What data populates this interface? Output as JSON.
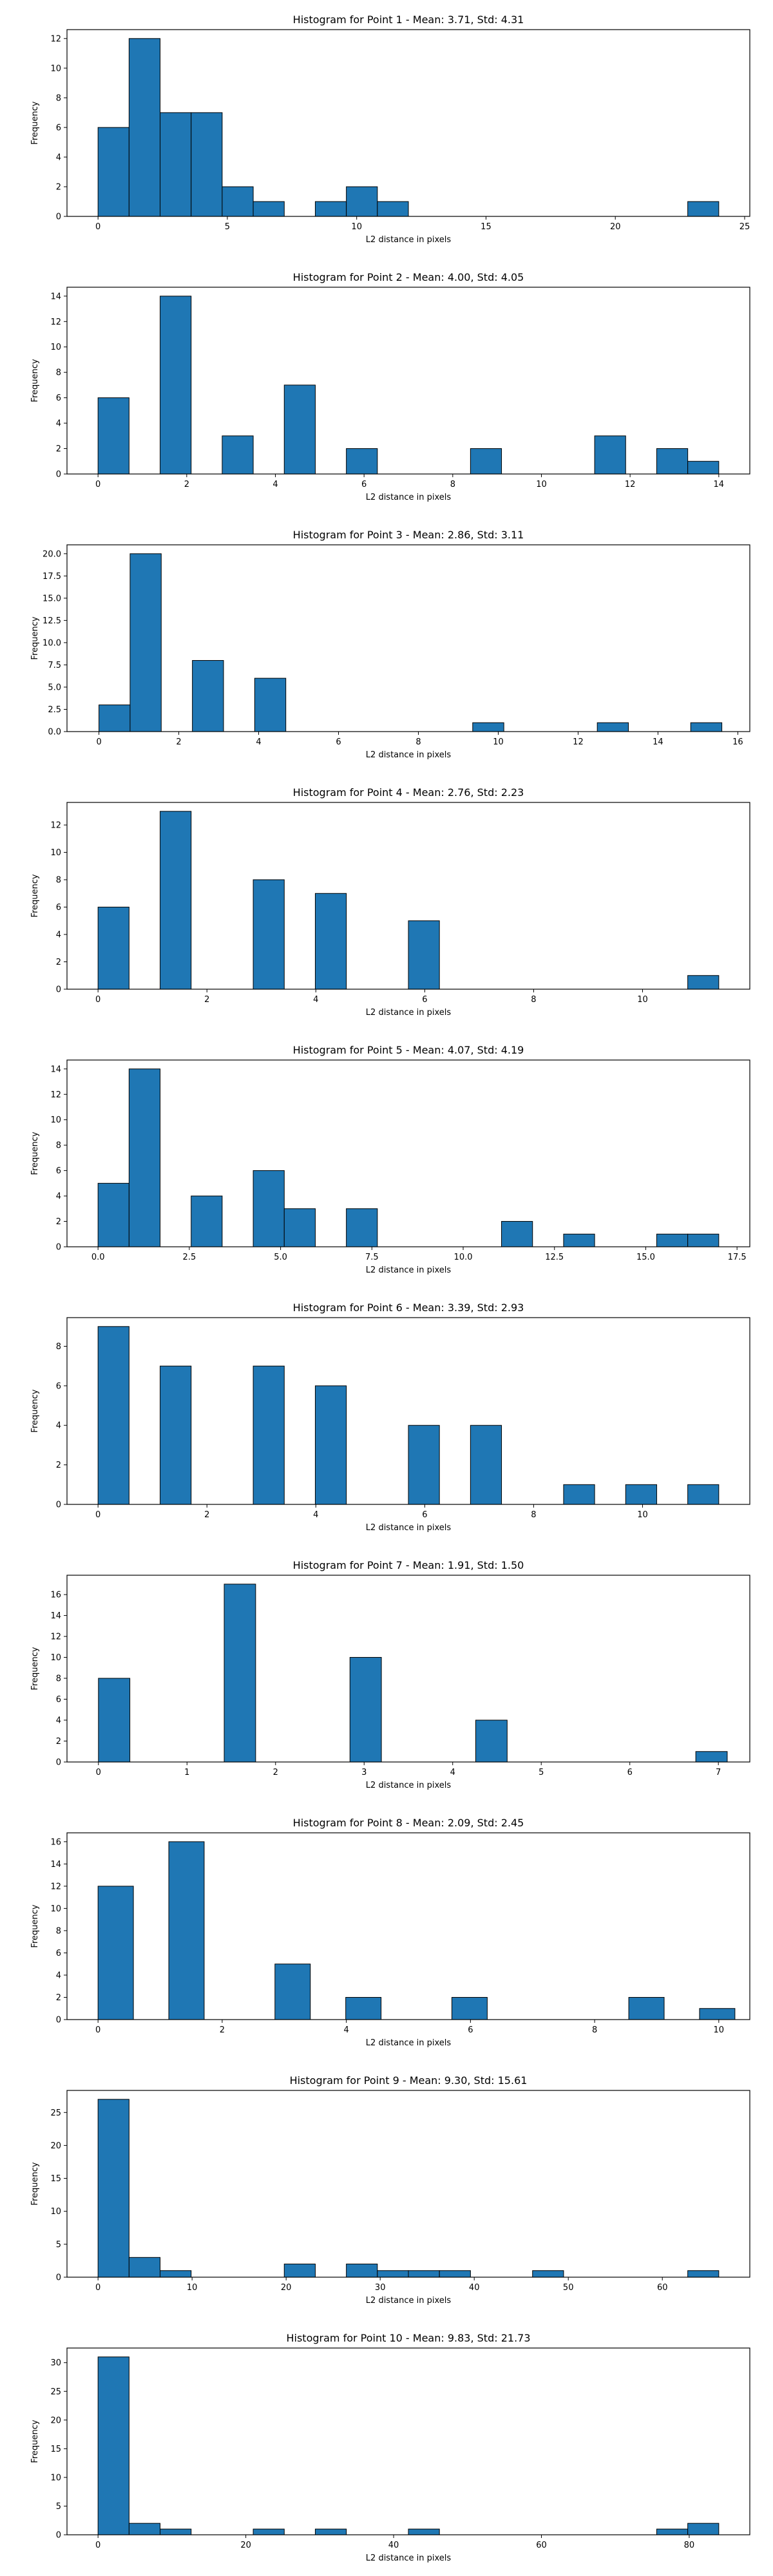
{
  "style": {
    "bar_color": "#1f77b4",
    "edge_color": "#000000"
  },
  "chart_data": [
    {
      "type": "bar",
      "title": "Histogram for Point 1 - Mean: 3.71, Std: 4.31",
      "xlabel": "L2 distance in pixels",
      "ylabel": "Frequency",
      "xlim": [
        -1.2,
        25.2
      ],
      "ylim": [
        0,
        12.6
      ],
      "xticks": [
        0,
        5,
        10,
        15,
        20,
        25
      ],
      "yticks": [
        0,
        2,
        4,
        6,
        8,
        10,
        12
      ],
      "bins": [
        [
          0,
          1.2,
          6
        ],
        [
          1.2,
          2.4,
          12
        ],
        [
          2.4,
          3.6,
          7
        ],
        [
          3.6,
          4.8,
          7
        ],
        [
          4.8,
          6.0,
          2
        ],
        [
          6.0,
          7.2,
          1
        ],
        [
          8.4,
          9.6,
          1
        ],
        [
          9.6,
          10.8,
          2
        ],
        [
          10.8,
          12.0,
          1
        ],
        [
          22.8,
          24.0,
          1
        ]
      ]
    },
    {
      "type": "bar",
      "title": "Histogram for Point 2 - Mean: 4.00, Std: 4.05",
      "xlabel": "L2 distance in pixels",
      "ylabel": "Frequency",
      "xlim": [
        -0.7,
        14.7
      ],
      "ylim": [
        0,
        14.7
      ],
      "xticks": [
        0,
        2,
        4,
        6,
        8,
        10,
        12,
        14
      ],
      "yticks": [
        0,
        2,
        4,
        6,
        8,
        10,
        12,
        14
      ],
      "bins": [
        [
          0,
          0.7,
          6
        ],
        [
          1.4,
          2.1,
          14
        ],
        [
          2.8,
          3.5,
          3
        ],
        [
          4.2,
          4.9,
          7
        ],
        [
          5.6,
          6.3,
          2
        ],
        [
          8.4,
          9.1,
          2
        ],
        [
          11.2,
          11.9,
          3
        ],
        [
          12.6,
          13.3,
          2
        ],
        [
          13.3,
          14.0,
          1
        ]
      ]
    },
    {
      "type": "bar",
      "title": "Histogram for Point 3 - Mean: 2.86, Std: 3.11",
      "xlabel": "L2 distance in pixels",
      "ylabel": "Frequency",
      "xlim": [
        -0.8,
        16.3
      ],
      "ylim": [
        0,
        21
      ],
      "xticks": [
        0,
        2,
        4,
        6,
        8,
        10,
        12,
        14,
        16
      ],
      "yticks": [
        0.0,
        2.5,
        5.0,
        7.5,
        10.0,
        12.5,
        15.0,
        17.5,
        20.0
      ],
      "ytick_labels": [
        "0.0",
        "2.5",
        "5.0",
        "7.5",
        "10.0",
        "12.5",
        "15.0",
        "17.5",
        "20.0"
      ],
      "bins": [
        [
          0,
          0.78,
          3
        ],
        [
          0.78,
          1.56,
          20
        ],
        [
          2.34,
          3.12,
          8
        ],
        [
          3.9,
          4.68,
          6
        ],
        [
          9.36,
          10.14,
          1
        ],
        [
          12.48,
          13.26,
          1
        ],
        [
          14.82,
          15.6,
          1
        ]
      ]
    },
    {
      "type": "bar",
      "title": "Histogram for Point 4 - Mean: 2.76, Std: 2.23",
      "xlabel": "L2 distance in pixels",
      "ylabel": "Frequency",
      "xlim": [
        -0.57,
        11.97
      ],
      "ylim": [
        0,
        13.65
      ],
      "xticks": [
        0,
        2,
        4,
        6,
        8,
        10
      ],
      "yticks": [
        0,
        2,
        4,
        6,
        8,
        10,
        12
      ],
      "bins": [
        [
          0,
          0.57,
          6
        ],
        [
          1.14,
          1.71,
          13
        ],
        [
          2.85,
          3.42,
          8
        ],
        [
          3.99,
          4.56,
          7
        ],
        [
          5.7,
          6.27,
          5
        ],
        [
          10.83,
          11.4,
          1
        ]
      ]
    },
    {
      "type": "bar",
      "title": "Histogram for Point 5 - Mean: 4.07, Std: 4.19",
      "xlabel": "L2 distance in pixels",
      "ylabel": "Frequency",
      "xlim": [
        -0.85,
        17.85
      ],
      "ylim": [
        0,
        14.7
      ],
      "xticks": [
        0.0,
        2.5,
        5.0,
        7.5,
        10.0,
        12.5,
        15.0,
        17.5
      ],
      "xtick_labels": [
        "0.0",
        "2.5",
        "5.0",
        "7.5",
        "10.0",
        "12.5",
        "15.0",
        "17.5"
      ],
      "yticks": [
        0,
        2,
        4,
        6,
        8,
        10,
        12,
        14
      ],
      "bins": [
        [
          0,
          0.85,
          5
        ],
        [
          0.85,
          1.7,
          14
        ],
        [
          2.55,
          3.4,
          4
        ],
        [
          4.25,
          5.1,
          6
        ],
        [
          5.1,
          5.95,
          3
        ],
        [
          6.8,
          7.65,
          3
        ],
        [
          11.05,
          11.9,
          2
        ],
        [
          12.75,
          13.6,
          1
        ],
        [
          15.3,
          16.15,
          1
        ],
        [
          16.15,
          17.0,
          1
        ]
      ]
    },
    {
      "type": "bar",
      "title": "Histogram for Point 6 - Mean: 3.39, Std: 2.93",
      "xlabel": "L2 distance in pixels",
      "ylabel": "Frequency",
      "xlim": [
        -0.57,
        11.97
      ],
      "ylim": [
        0,
        9.45
      ],
      "xticks": [
        0,
        2,
        4,
        6,
        8,
        10
      ],
      "yticks": [
        0,
        2,
        4,
        6,
        8
      ],
      "bins": [
        [
          0,
          0.57,
          9
        ],
        [
          1.14,
          1.71,
          7
        ],
        [
          2.85,
          3.42,
          7
        ],
        [
          3.99,
          4.56,
          6
        ],
        [
          5.7,
          6.27,
          4
        ],
        [
          6.84,
          7.41,
          4
        ],
        [
          8.55,
          9.12,
          1
        ],
        [
          9.69,
          10.26,
          1
        ],
        [
          10.83,
          11.4,
          1
        ]
      ]
    },
    {
      "type": "bar",
      "title": "Histogram for Point 7 - Mean: 1.91, Std: 1.50",
      "xlabel": "L2 distance in pixels",
      "ylabel": "Frequency",
      "xlim": [
        -0.355,
        7.355
      ],
      "ylim": [
        0,
        17.85
      ],
      "xticks": [
        0,
        1,
        2,
        3,
        4,
        5,
        6,
        7
      ],
      "yticks": [
        0,
        2,
        4,
        6,
        8,
        10,
        12,
        14,
        16
      ],
      "bins": [
        [
          0,
          0.355,
          8
        ],
        [
          1.42,
          1.775,
          17
        ],
        [
          2.84,
          3.195,
          10
        ],
        [
          4.26,
          4.615,
          4
        ],
        [
          6.745,
          7.1,
          1
        ]
      ]
    },
    {
      "type": "bar",
      "title": "Histogram for Point 8 - Mean: 2.09, Std: 2.45",
      "xlabel": "L2 distance in pixels",
      "ylabel": "Frequency",
      "xlim": [
        -0.5,
        10.5
      ],
      "ylim": [
        0,
        16.8
      ],
      "xticks": [
        0,
        2,
        4,
        6,
        8,
        10
      ],
      "yticks": [
        0,
        2,
        4,
        6,
        8,
        10,
        12,
        14,
        16
      ],
      "bins": [
        [
          0,
          0.57,
          12
        ],
        [
          1.14,
          1.71,
          16
        ],
        [
          2.85,
          3.42,
          5
        ],
        [
          3.99,
          4.56,
          2
        ],
        [
          5.7,
          6.27,
          2
        ],
        [
          8.55,
          9.12,
          2
        ],
        [
          9.69,
          10.26,
          1
        ]
      ]
    },
    {
      "type": "bar",
      "title": "Histogram for Point 9 - Mean: 9.30, Std: 15.61",
      "xlabel": "L2 distance in pixels",
      "ylabel": "Frequency",
      "xlim": [
        -3.3,
        69.3
      ],
      "ylim": [
        0,
        28.35
      ],
      "xticks": [
        0,
        10,
        20,
        30,
        40,
        50,
        60
      ],
      "yticks": [
        0,
        5,
        10,
        15,
        20,
        25
      ],
      "bins": [
        [
          0,
          3.3,
          27
        ],
        [
          3.3,
          6.6,
          3
        ],
        [
          6.6,
          9.9,
          1
        ],
        [
          19.8,
          23.1,
          2
        ],
        [
          26.4,
          29.7,
          2
        ],
        [
          29.7,
          33.0,
          1
        ],
        [
          33.0,
          36.3,
          1
        ],
        [
          36.3,
          39.6,
          1
        ],
        [
          46.2,
          49.5,
          1
        ],
        [
          62.7,
          66.0,
          1
        ]
      ]
    },
    {
      "type": "bar",
      "title": "Histogram for Point 10 - Mean: 9.83, Std: 21.73",
      "xlabel": "L2 distance in pixels",
      "ylabel": "Frequency",
      "xlim": [
        -4.2,
        88.2
      ],
      "ylim": [
        0,
        32.55
      ],
      "xticks": [
        0,
        20,
        40,
        60,
        80
      ],
      "yticks": [
        0,
        5,
        10,
        15,
        20,
        25,
        30
      ],
      "bins": [
        [
          0,
          4.2,
          31
        ],
        [
          4.2,
          8.4,
          2
        ],
        [
          8.4,
          12.6,
          1
        ],
        [
          21.0,
          25.2,
          1
        ],
        [
          29.4,
          33.6,
          1
        ],
        [
          42.0,
          46.2,
          1
        ],
        [
          75.6,
          79.8,
          1
        ],
        [
          79.8,
          84.0,
          2
        ]
      ]
    }
  ]
}
